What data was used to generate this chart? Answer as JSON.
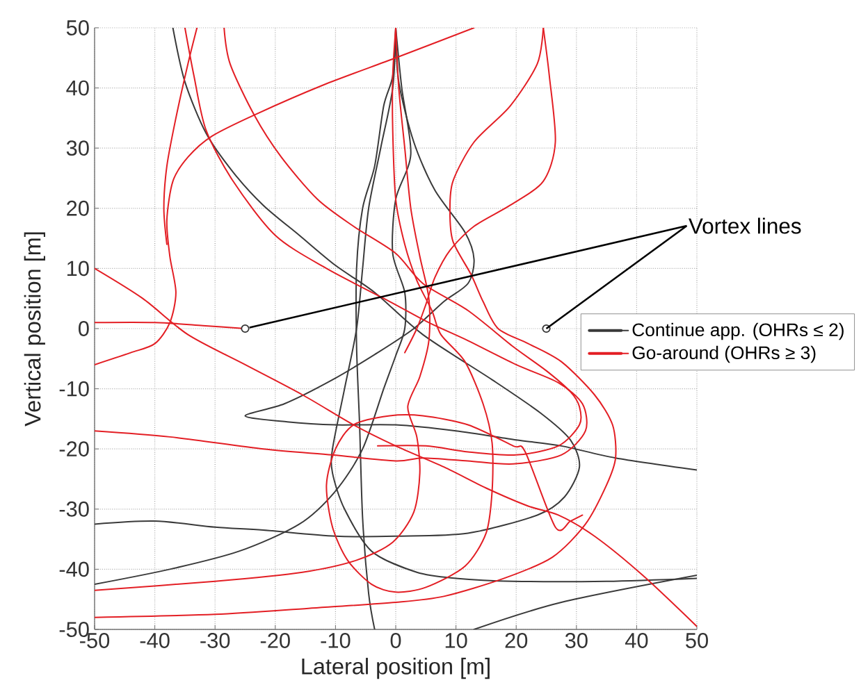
{
  "chart_data": {
    "type": "line",
    "xlabel": "Lateral position [m]",
    "ylabel": "Vertical position [m]",
    "xlim": [
      -50,
      50
    ],
    "ylim": [
      -50,
      50
    ],
    "xticks": [
      -50,
      -40,
      -30,
      -20,
      -10,
      0,
      10,
      20,
      30,
      40,
      50
    ],
    "yticks": [
      -50,
      -40,
      -30,
      -20,
      -10,
      0,
      10,
      20,
      30,
      40,
      50
    ],
    "grid": true,
    "legend": "right",
    "annotations": [
      {
        "text": "Vortex lines",
        "x": 25,
        "y": 0
      }
    ],
    "series": [
      {
        "name": "Continue app. (OHRs ≤ 2)",
        "color": "#3a3a3a",
        "x": [
          -37,
          -35,
          -31.5,
          -27,
          -22,
          -16,
          -10,
          -3.5,
          4.5,
          16,
          24,
          29,
          30.5,
          28,
          23.5,
          12,
          0,
          -10,
          -22,
          -30,
          -40,
          -50
        ],
        "values": [
          50,
          41,
          32.5,
          26,
          20.5,
          15.5,
          10.5,
          6,
          -1,
          -8.5,
          -14,
          -18.5,
          -23,
          -28,
          -31,
          -34,
          -34.5,
          -34.5,
          -33.5,
          -33,
          -32,
          -32.5
        ]
      },
      {
        "color": "#3a3a3a",
        "x": [
          0,
          0.5,
          3,
          6.5,
          11.5,
          13,
          12,
          8,
          3,
          -3,
          -10.5,
          -18.5,
          -25,
          -18,
          -10,
          0,
          10,
          20,
          27.5,
          36.5,
          50
        ],
        "values": [
          50,
          41,
          31,
          23,
          16,
          11.5,
          7.5,
          4.5,
          0,
          -4,
          -8.5,
          -12.5,
          -14.5,
          -15.5,
          -16,
          -16,
          -17,
          -18.5,
          -19.5,
          -21.5,
          -23.5
        ]
      },
      {
        "color": "#3a3a3a",
        "x": [
          0,
          -0.5,
          -2,
          -3.5,
          -5.5,
          -6.5,
          -6.5,
          -6,
          -5.5,
          -4.5,
          -3.5
        ],
        "values": [
          50,
          42,
          37,
          27,
          20,
          10,
          -3,
          -16,
          -31.5,
          -44,
          -50
        ]
      },
      {
        "color": "#3a3a3a",
        "x": [
          0,
          1,
          2.5,
          0,
          -0.5,
          1.5,
          1.5,
          0,
          -2,
          -5.5,
          -10,
          -16,
          -26,
          -37.5,
          -50
        ],
        "values": [
          50,
          40,
          29,
          21.5,
          12.5,
          6,
          0,
          -4.5,
          -10,
          -20,
          -27,
          -32.5,
          -37,
          -40,
          -42.5
        ]
      },
      {
        "color": "#3a3a3a",
        "x": [
          13,
          27.5,
          50
        ],
        "values": [
          -50,
          -45.5,
          -41
        ]
      },
      {
        "color": "#3a3a3a",
        "x": [
          0,
          -0.5,
          -2.5,
          -4.5,
          -5.5,
          -6.5,
          -8.5,
          -10.5,
          -10.5,
          -8.5,
          -4,
          3.5,
          10,
          19.5,
          35,
          50
        ],
        "values": [
          50,
          40,
          30,
          20,
          10,
          0,
          -10,
          -20,
          -24,
          -30,
          -37,
          -40.5,
          -41.5,
          -42,
          -42,
          -41.5
        ]
      },
      {
        "name": "Go-around (OHRs ≥ 3)",
        "color": "#e31e24",
        "x": [
          -35,
          -33.5,
          -31.5,
          -27,
          -20,
          -11.5,
          -1,
          5.5,
          12,
          20,
          27,
          31,
          31.5,
          27.5,
          19.5,
          12,
          4.5,
          0,
          -10.5,
          -22,
          -37.5,
          -50
        ],
        "values": [
          50,
          42,
          33,
          24.5,
          15.5,
          10,
          4.5,
          1,
          -2,
          -6,
          -9,
          -12.5,
          -17,
          -21,
          -22.5,
          -22,
          -21.5,
          -22,
          -21,
          -20,
          -18,
          -17
        ]
      },
      {
        "color": "#e31e24",
        "x": [
          -50,
          -40,
          -32,
          -25
        ],
        "values": [
          1,
          1,
          0.5,
          0
        ]
      },
      {
        "color": "#e31e24",
        "x": [
          13,
          0,
          -12,
          -23.5,
          -30.5,
          -34.5,
          -37,
          -38,
          -37.5,
          -36.5,
          -37.5,
          -40,
          -44,
          -50
        ],
        "values": [
          50,
          45,
          40.5,
          35.5,
          32,
          28.5,
          24.5,
          18,
          12,
          6,
          1,
          -2.5,
          -4,
          -6
        ]
      },
      {
        "color": "#e31e24",
        "x": [
          -33,
          -34.5,
          -36.5,
          -38,
          -38.5,
          -38
        ],
        "values": [
          50,
          44,
          35,
          27,
          20,
          14
        ]
      },
      {
        "color": "#e31e24",
        "x": [
          -50,
          -42,
          -34.5,
          -25,
          -15.5,
          -7,
          0,
          8,
          15,
          22,
          27,
          33,
          41,
          50
        ],
        "values": [
          10,
          5,
          -1,
          -6,
          -11,
          -16,
          -19.5,
          -23,
          -26.5,
          -29.5,
          -31,
          -34.5,
          -41,
          -49.5
        ]
      },
      {
        "color": "#e31e24",
        "x": [
          -28.5,
          -27.5,
          -23.5,
          -19,
          -13,
          -7,
          0,
          4.5,
          12,
          19.5,
          25,
          29,
          30.5,
          30.5,
          27,
          20,
          12,
          5,
          -3
        ],
        "values": [
          50,
          44,
          35.5,
          28.5,
          21.5,
          17,
          12.5,
          7.5,
          3,
          -3,
          -7,
          -10.5,
          -13,
          -16,
          -19.5,
          -21,
          -20.5,
          -19.5,
          -19.5
        ]
      },
      {
        "color": "#e31e24",
        "x": [
          24.5,
          23.5,
          19,
          13,
          9.5,
          9,
          9.5,
          12.5,
          14.5,
          17,
          22,
          27.5,
          33,
          36,
          36.5,
          35,
          31.5,
          26,
          18,
          8,
          0,
          -14.5,
          -30,
          -50
        ],
        "values": [
          50,
          44,
          37,
          31,
          24.5,
          19.5,
          14.5,
          9,
          4.5,
          0,
          -2.5,
          -5.5,
          -11,
          -16,
          -21.5,
          -26,
          -32.5,
          -38,
          -41.5,
          -44.5,
          -45.5,
          -46.5,
          -47.5,
          -48
        ]
      },
      {
        "color": "#e31e24",
        "x": [
          24.5,
          25.5,
          26.5,
          24.5,
          19,
          13,
          9,
          6.5,
          5,
          3.5,
          1.5
        ],
        "values": [
          50,
          42,
          31,
          24.5,
          20.5,
          17,
          13,
          8.5,
          4,
          0,
          -4
        ]
      },
      {
        "color": "#e31e24",
        "x": [
          0,
          -0.5,
          -0.5,
          0,
          1.5,
          3.5,
          6,
          7.5,
          11.5,
          14.5,
          16,
          16,
          15,
          11.5,
          5,
          0,
          -4,
          -8,
          -10.5,
          -11.5,
          -10,
          -7,
          -1,
          4.5,
          12,
          19.5,
          21.5,
          26.5,
          29,
          31
        ],
        "values": [
          50,
          42,
          33,
          21.5,
          14,
          8,
          3,
          -1,
          -5.5,
          -12.5,
          -19,
          -27,
          -34,
          -39.5,
          -43,
          -43.8,
          -42.5,
          -38.5,
          -33,
          -26,
          -20,
          -16,
          -14.5,
          -14.5,
          -16,
          -19.5,
          -20.5,
          -33,
          -32,
          -31
        ]
      },
      {
        "color": "#e31e24",
        "x": [
          0,
          0.5,
          1.5,
          2.5,
          4,
          5.5,
          5.5,
          4,
          2,
          3.5,
          4,
          3,
          -0.5,
          -6.5,
          -15.5,
          -30,
          -50
        ],
        "values": [
          50,
          40,
          30,
          20,
          12,
          5,
          -2,
          -8,
          -13,
          -18,
          -24,
          -30.5,
          -35.5,
          -38.5,
          -40.5,
          -42,
          -43.5
        ]
      },
      {
        "type": "scatter",
        "marker": "circle",
        "color": "#333333",
        "x": [
          -25,
          25
        ],
        "values": [
          0,
          0
        ]
      }
    ]
  }
}
